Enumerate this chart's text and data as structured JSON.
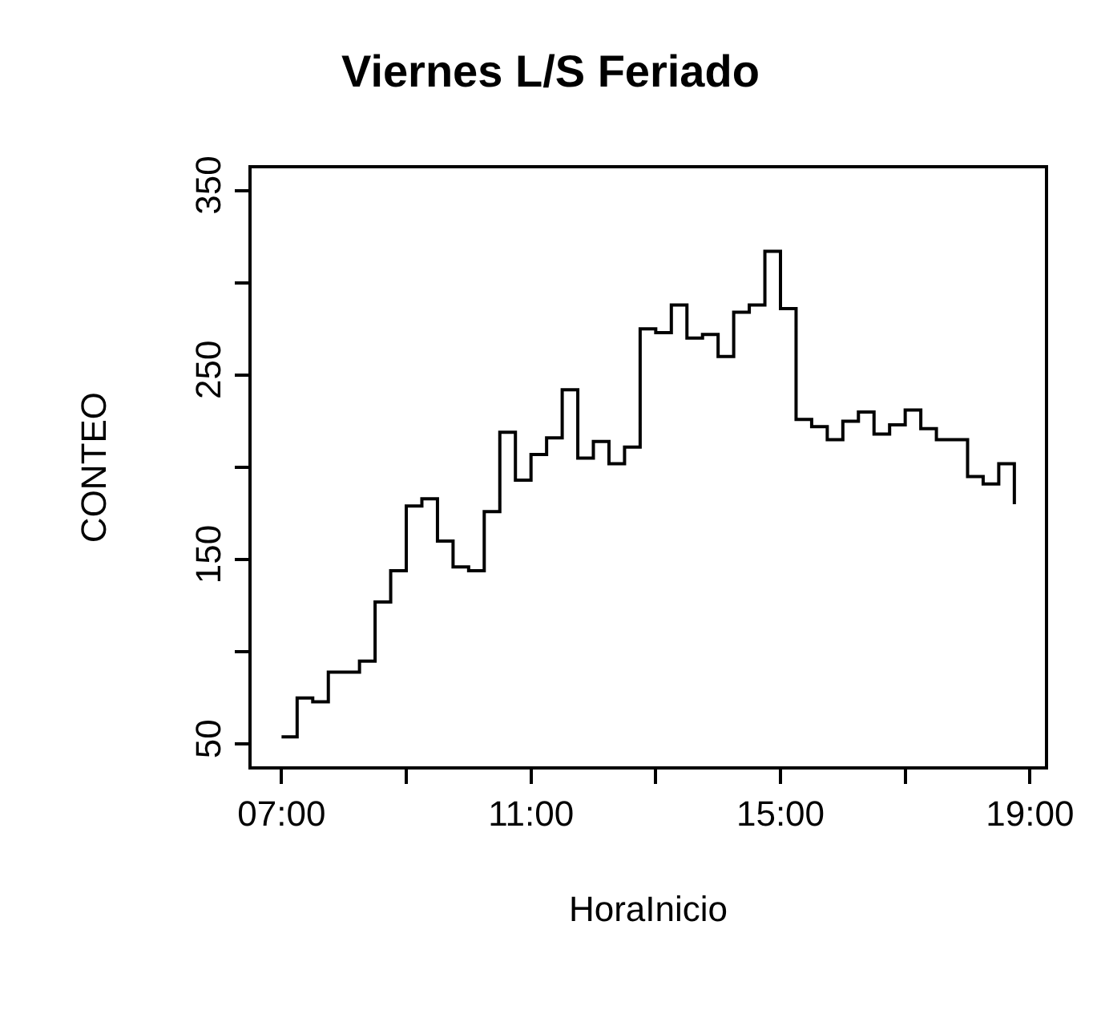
{
  "chart_data": {
    "type": "step",
    "title": "Viernes L/S Feriado",
    "xlabel": "HoraInicio",
    "ylabel": "CONTEO",
    "x": [
      7,
      7.25,
      7.5,
      7.75,
      8,
      8.25,
      8.5,
      8.75,
      9,
      9.25,
      9.5,
      9.75,
      10,
      10.25,
      10.5,
      10.75,
      11,
      11.25,
      11.5,
      11.75,
      12,
      12.25,
      12.5,
      12.75,
      13,
      13.25,
      13.5,
      13.75,
      14,
      14.25,
      14.5,
      14.75,
      15,
      15.25,
      15.5,
      15.75,
      16,
      16.25,
      16.5,
      16.75,
      17,
      17.25,
      17.5,
      17.75,
      18,
      18.25,
      18.5,
      18.75
    ],
    "series": [
      {
        "color": "#000000",
        "values": [
          54,
          75,
          73,
          89,
          89,
          95,
          127,
          144,
          179,
          183,
          160,
          146,
          144,
          176,
          219,
          193,
          207,
          216,
          242,
          205,
          214,
          202,
          211,
          275,
          273,
          288,
          270,
          272,
          260,
          284,
          288,
          317,
          286,
          226,
          222,
          215,
          225,
          230,
          218,
          223,
          231,
          221,
          215,
          215,
          195,
          191,
          202,
          180
        ]
      }
    ],
    "xlim": [
      6.52,
      19.24
    ],
    "xticks": [
      {
        "value": 7,
        "label": "07:00"
      },
      {
        "value": 9,
        "label": null
      },
      {
        "value": 11,
        "label": "11:00"
      },
      {
        "value": 13,
        "label": null
      },
      {
        "value": 15,
        "label": "15:00"
      },
      {
        "value": 17,
        "label": null
      },
      {
        "value": 19,
        "label": "19:00"
      }
    ],
    "ylim": [
      38,
      362
    ],
    "yticks": [
      50,
      {
        "value": 100,
        "label": null
      },
      150,
      {
        "value": 200,
        "label": null
      },
      250,
      {
        "value": 300,
        "label": null
      },
      350
    ],
    "marker": "none",
    "line_style": "solid"
  }
}
